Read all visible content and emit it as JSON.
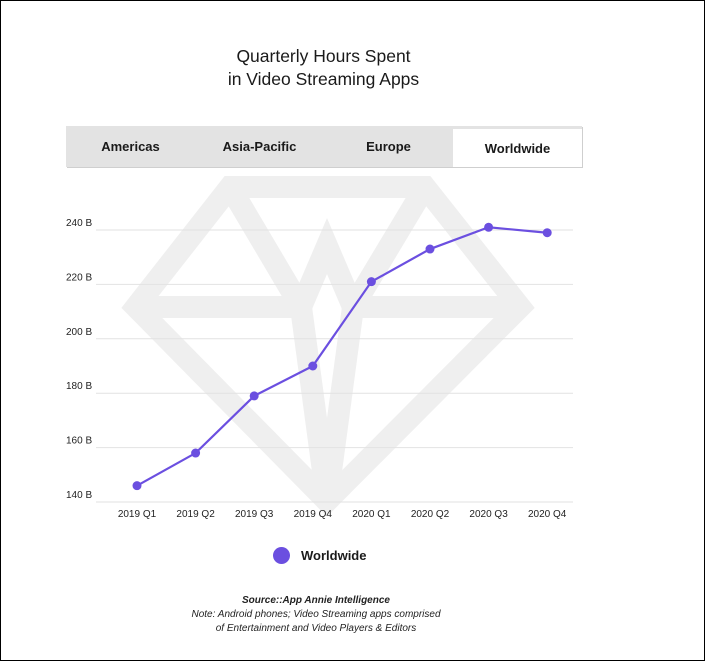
{
  "title": {
    "line1": "Quarterly Hours Spent",
    "line2": "in Video Streaming Apps"
  },
  "tabs": [
    {
      "label": "Americas",
      "active": false
    },
    {
      "label": "Asia-Pacific",
      "active": false
    },
    {
      "label": "Europe",
      "active": false
    },
    {
      "label": "Worldwide",
      "active": true
    }
  ],
  "colors": {
    "line": "#6b4fe0",
    "grid": "#e2e2e2",
    "watermark": "#efefef"
  },
  "chart_data": {
    "type": "line",
    "categories": [
      "2019 Q1",
      "2019 Q2",
      "2019 Q3",
      "2019 Q4",
      "2020 Q1",
      "2020 Q2",
      "2020 Q3",
      "2020 Q4"
    ],
    "series": [
      {
        "name": "Worldwide",
        "values": [
          146,
          158,
          179,
          190,
          221,
          233,
          241,
          239
        ]
      }
    ],
    "y_ticks": [
      140,
      160,
      180,
      200,
      220,
      240
    ],
    "y_tick_labels": [
      "140 B",
      "160 B",
      "180 B",
      "200 B",
      "220 B",
      "240 B"
    ],
    "ylim": [
      140,
      240
    ],
    "grid": true,
    "legend_position": "bottom"
  },
  "legend": {
    "label": "Worldwide"
  },
  "source": {
    "line1": "Source::App Annie Intelligence",
    "line2": "Note: Android phones; Video Streaming apps comprised",
    "line3": "of Entertainment and Video Players & Editors"
  }
}
